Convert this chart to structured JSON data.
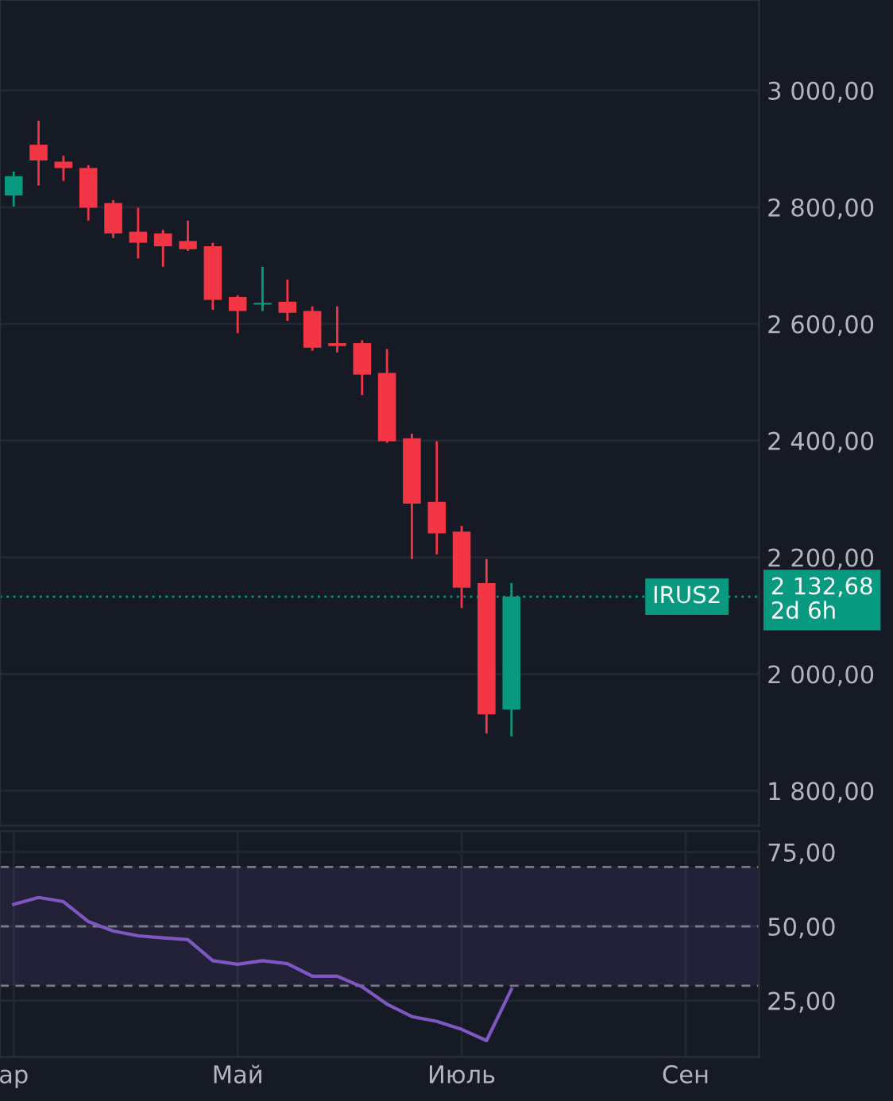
{
  "chart_data": [
    {
      "type": "candlestick",
      "categories": [
        null,
        null,
        null,
        null,
        null,
        null,
        null,
        null,
        null,
        null,
        null,
        null,
        null,
        null,
        null,
        null,
        null,
        null,
        null,
        null,
        null,
        null,
        null,
        null,
        null,
        null,
        null,
        null,
        null,
        null,
        null
      ],
      "ohlc": [
        [
          2820,
          2861,
          2801,
          2853
        ],
        [
          2907,
          2948,
          2837,
          2880
        ],
        [
          2878,
          2888,
          2845,
          2867
        ],
        [
          2867,
          2872,
          2777,
          2799
        ],
        [
          2807,
          2812,
          2747,
          2755
        ],
        [
          2758,
          2799,
          2712,
          2739
        ],
        [
          2755,
          2761,
          2698,
          2733
        ],
        [
          2742,
          2777,
          2725,
          2728
        ],
        [
          2733,
          2739,
          2624,
          2641
        ],
        [
          2646,
          2649,
          2584,
          2622
        ],
        [
          2633,
          2698,
          2622,
          2636
        ],
        [
          2638,
          2676,
          2605,
          2619
        ],
        [
          2622,
          2630,
          2554,
          2559
        ],
        [
          2567,
          2630,
          2551,
          2562
        ],
        [
          2567,
          2572,
          2478,
          2513
        ],
        [
          2516,
          2557,
          2396,
          2399
        ],
        [
          2404,
          2412,
          2197,
          2292
        ],
        [
          2295,
          2399,
          2205,
          2241
        ],
        [
          2244,
          2254,
          2113,
          2148
        ],
        [
          2156,
          2197,
          1898,
          1931
        ],
        [
          1939,
          2156,
          1893,
          2132.68
        ],
        null,
        null,
        null,
        null,
        null,
        null,
        null,
        null,
        null,
        null
      ],
      "colors": [
        "#089981",
        "#f23645",
        "#f23645",
        "#f23645",
        "#f23645",
        "#f23645",
        "#f23645",
        "#f23645",
        "#f23645",
        "#f23645",
        "#089981",
        "#f23645",
        "#f23645",
        "#f23645",
        "#f23645",
        "#f23645",
        "#f23645",
        "#f23645",
        "#f23645",
        "#f23645",
        "#089981",
        null,
        null,
        null,
        null,
        null,
        null,
        null,
        null,
        null,
        null
      ],
      "ylim": [
        1740,
        3155
      ],
      "yticks": [
        {
          "value": 1800,
          "label": "1 800,00"
        },
        {
          "value": 2000,
          "label": "2 000,00"
        },
        {
          "value": 2200,
          "label": "2 200,00"
        },
        {
          "value": 2400,
          "label": "2 400,00"
        },
        {
          "value": 2600,
          "label": "2 600,00"
        },
        {
          "value": 2800,
          "label": "2 800,00"
        },
        {
          "value": 3000,
          "label": "3 000,00"
        }
      ],
      "tick_labels": "y",
      "grid": "y",
      "ref_lines": [
        {
          "axis": "y",
          "value": 2132.68,
          "label": "IRUS2",
          "color": "#089981",
          "line_style": "dotted"
        }
      ],
      "annotations": [
        "2 132,68",
        "2d 6h"
      ]
    },
    {
      "type": "line",
      "categories": [
        "ар",
        null,
        null,
        null,
        null,
        null,
        null,
        null,
        null,
        "Май",
        null,
        null,
        null,
        null,
        null,
        null,
        null,
        null,
        "Июль",
        null,
        null,
        null,
        null,
        null,
        null,
        null,
        null,
        "Сен",
        null,
        null,
        null
      ],
      "series": [
        {
          "color": "#7e57c2",
          "values": [
            57.4,
            59.7,
            58.3,
            51.6,
            48.4,
            46.8,
            46.1,
            45.5,
            38.4,
            37.2,
            38.4,
            37.4,
            33.2,
            33.2,
            29.6,
            23.8,
            19.6,
            18.0,
            15.3,
            11.5,
            28.8,
            null,
            null,
            null,
            null,
            null,
            null,
            null,
            null,
            null,
            null
          ]
        }
      ],
      "ylim": [
        6,
        82
      ],
      "yticks": [
        {
          "value": 25,
          "label": "25,00"
        },
        {
          "value": 50,
          "label": "50,00"
        },
        {
          "value": 75,
          "label": "75,00"
        }
      ],
      "grid": true,
      "ref_lines": [
        {
          "axis": "y",
          "value": 70,
          "color": "#787b86",
          "line_style": "dashed"
        },
        {
          "axis": "y",
          "value": 50,
          "color": "#787b86",
          "line_style": "dashed"
        },
        {
          "axis": "y",
          "value": 30,
          "color": "#787b86",
          "line_style": "dashed"
        }
      ],
      "bands": [
        {
          "axis": "y",
          "from": 30,
          "to": 70,
          "color": "#7e57c2"
        }
      ]
    }
  ]
}
